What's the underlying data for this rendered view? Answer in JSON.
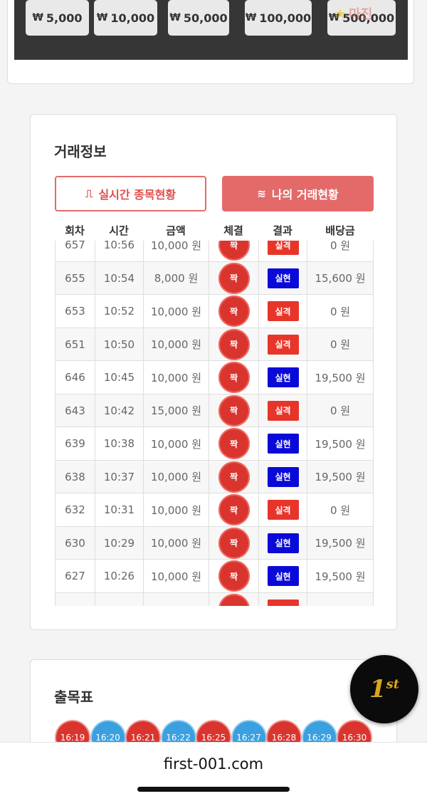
{
  "bet_amounts": [
    "5,000",
    "10,000",
    "50,000",
    "100,000",
    "500,000"
  ],
  "currency_symbol": "₩",
  "watermark": "마진",
  "trade": {
    "title": "거래정보",
    "btn_realtime": "실시간 종목현황",
    "btn_mine": "나의 거래현황",
    "headers": [
      "회차",
      "시간",
      "금액",
      "체결",
      "결과",
      "배당금"
    ],
    "rows": [
      {
        "round": "657",
        "time": "10:56",
        "amount": "10,000 원",
        "pick": "짝",
        "result": "실격",
        "result_type": "lose",
        "payout": "0 원"
      },
      {
        "round": "655",
        "time": "10:54",
        "amount": "8,000 원",
        "pick": "짝",
        "result": "실현",
        "result_type": "win",
        "payout": "15,600 원"
      },
      {
        "round": "653",
        "time": "10:52",
        "amount": "10,000 원",
        "pick": "짝",
        "result": "실격",
        "result_type": "lose",
        "payout": "0 원"
      },
      {
        "round": "651",
        "time": "10:50",
        "amount": "10,000 원",
        "pick": "짝",
        "result": "실격",
        "result_type": "lose",
        "payout": "0 원"
      },
      {
        "round": "646",
        "time": "10:45",
        "amount": "10,000 원",
        "pick": "짝",
        "result": "실현",
        "result_type": "win",
        "payout": "19,500 원"
      },
      {
        "round": "643",
        "time": "10:42",
        "amount": "15,000 원",
        "pick": "짝",
        "result": "실격",
        "result_type": "lose",
        "payout": "0 원"
      },
      {
        "round": "639",
        "time": "10:38",
        "amount": "10,000 원",
        "pick": "짝",
        "result": "실현",
        "result_type": "win",
        "payout": "19,500 원"
      },
      {
        "round": "638",
        "time": "10:37",
        "amount": "10,000 원",
        "pick": "짝",
        "result": "실현",
        "result_type": "win",
        "payout": "19,500 원"
      },
      {
        "round": "632",
        "time": "10:31",
        "amount": "10,000 원",
        "pick": "짝",
        "result": "실격",
        "result_type": "lose",
        "payout": "0 원"
      },
      {
        "round": "630",
        "time": "10:29",
        "amount": "10,000 원",
        "pick": "짝",
        "result": "실현",
        "result_type": "win",
        "payout": "19,500 원"
      },
      {
        "round": "627",
        "time": "10:26",
        "amount": "10,000 원",
        "pick": "짝",
        "result": "실현",
        "result_type": "win",
        "payout": "19,500 원"
      },
      {
        "round": "",
        "time": "",
        "amount": "",
        "pick": "",
        "result": "",
        "result_type": "lose",
        "payout": ""
      }
    ]
  },
  "chulmok": {
    "title": "출목표",
    "chips": [
      {
        "time": "16:19",
        "color": "red"
      },
      {
        "time": "16:20",
        "color": "blue"
      },
      {
        "time": "16:21",
        "color": "red"
      },
      {
        "time": "16:22",
        "color": "blue"
      },
      {
        "time": "16:25",
        "color": "red"
      },
      {
        "time": "16:27",
        "color": "blue"
      },
      {
        "time": "16:28",
        "color": "red"
      },
      {
        "time": "16:29",
        "color": "blue"
      },
      {
        "time": "16:30",
        "color": "red"
      }
    ]
  },
  "badge": {
    "main": "1",
    "sup": "st"
  },
  "browser": {
    "url": "first-001.com"
  }
}
